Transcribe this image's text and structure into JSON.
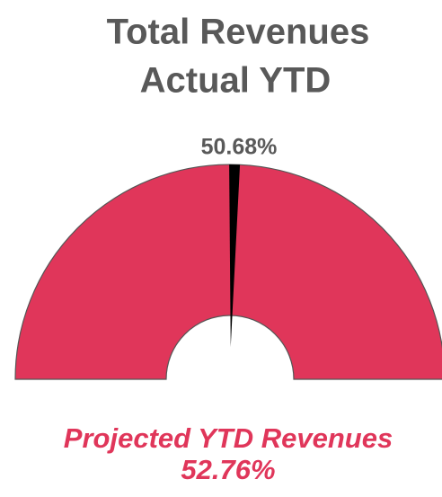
{
  "chart_data": {
    "type": "gauge",
    "title": "Total Revenues",
    "subtitle": "Actual YTD",
    "value": 50.68,
    "value_label": "50.68%",
    "ylim": [
      0,
      100
    ],
    "color": "#e0365a",
    "needle_color": "#000000",
    "footer": "Projected YTD Revenues",
    "footer_value": "52.76%"
  }
}
